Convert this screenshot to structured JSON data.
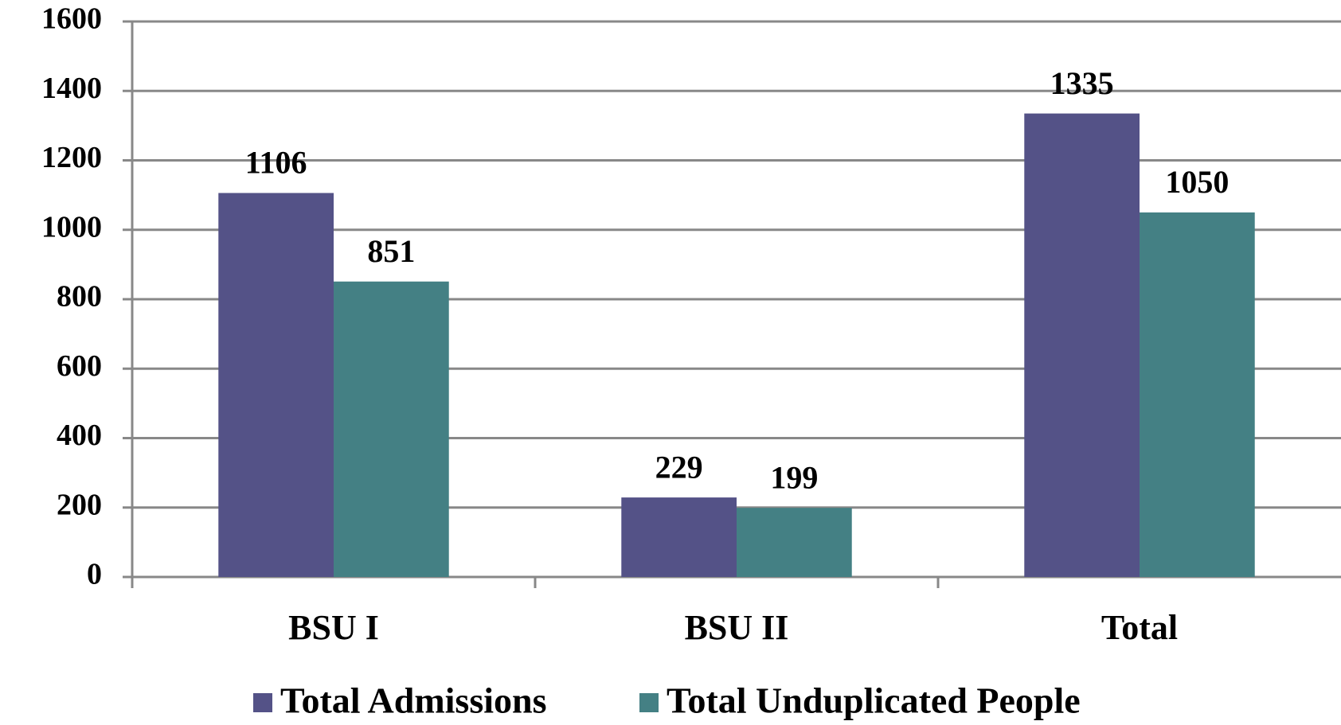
{
  "chart_data": {
    "type": "bar",
    "categories": [
      "BSU I",
      "BSU II",
      "Total"
    ],
    "series": [
      {
        "name": "Total Admissions",
        "color": "#545287",
        "values": [
          1106,
          229,
          1335
        ]
      },
      {
        "name": "Total Unduplicated People",
        "color": "#448084",
        "values": [
          851,
          199,
          1050
        ]
      }
    ],
    "ylim": [
      0,
      1600
    ],
    "yticks": [
      0,
      200,
      400,
      600,
      800,
      1000,
      1200,
      1400,
      1600
    ],
    "grid": true
  }
}
